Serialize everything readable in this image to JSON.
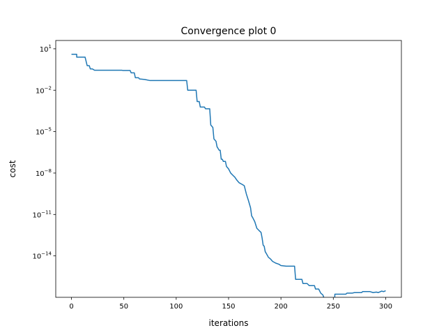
{
  "chart_data": {
    "type": "line",
    "title": "Convergence plot 0",
    "xlabel": "iterations",
    "ylabel": "cost",
    "x_scale": "linear",
    "y_scale": "log",
    "xlim": [
      -15,
      315
    ],
    "ylim": [
      1e-17,
      40
    ],
    "grid": false,
    "line_color": "#1f77b4",
    "x_ticks": [
      0,
      50,
      100,
      150,
      200,
      250,
      300
    ],
    "x_tick_labels": [
      "0",
      "50",
      "100",
      "150",
      "200",
      "250",
      "300"
    ],
    "y_ticks": [
      10,
      0.01,
      1e-05,
      1e-08,
      1e-11,
      1e-14
    ],
    "y_tick_labels": [
      {
        "base": "10",
        "exp": "1"
      },
      {
        "base": "10",
        "exp": "−2"
      },
      {
        "base": "10",
        "exp": "−5"
      },
      {
        "base": "10",
        "exp": "−8"
      },
      {
        "base": "10",
        "exp": "−11"
      },
      {
        "base": "10",
        "exp": "−14"
      }
    ],
    "series": [
      {
        "points": [
          [
            0,
            4
          ],
          [
            5,
            4
          ],
          [
            5,
            2.5
          ],
          [
            13,
            2.5
          ],
          [
            15,
            0.6
          ],
          [
            17,
            0.6
          ],
          [
            18,
            0.35
          ],
          [
            20,
            0.35
          ],
          [
            22,
            0.28
          ],
          [
            48,
            0.28
          ],
          [
            49,
            0.27
          ],
          [
            56,
            0.27
          ],
          [
            57,
            0.18
          ],
          [
            60,
            0.18
          ],
          [
            61,
            0.08
          ],
          [
            64,
            0.08
          ],
          [
            65,
            0.065
          ],
          [
            70,
            0.06
          ],
          [
            75,
            0.05
          ],
          [
            110,
            0.05
          ],
          [
            111,
            0.01
          ],
          [
            119,
            0.01
          ],
          [
            120,
            0.0015
          ],
          [
            122,
            0.0015
          ],
          [
            123,
            0.0006
          ],
          [
            127,
            0.0006
          ],
          [
            128,
            0.00045
          ],
          [
            132,
            0.00045
          ],
          [
            133,
            3e-05
          ],
          [
            135,
            2e-05
          ],
          [
            136,
            3e-06
          ],
          [
            138,
            2e-06
          ],
          [
            139,
            8e-07
          ],
          [
            140,
            6e-07
          ],
          [
            141,
            4.5e-07
          ],
          [
            142,
            4.5e-07
          ],
          [
            143,
            1e-07
          ],
          [
            144,
            1e-07
          ],
          [
            145,
            7e-08
          ],
          [
            147,
            7e-08
          ],
          [
            148,
            3e-08
          ],
          [
            150,
            2e-08
          ],
          [
            152,
            1e-08
          ],
          [
            154,
            7e-09
          ],
          [
            156,
            5e-09
          ],
          [
            158,
            3e-09
          ],
          [
            160,
            2e-09
          ],
          [
            163,
            1.5e-09
          ],
          [
            165,
            1.2e-09
          ],
          [
            167,
            3e-10
          ],
          [
            169,
            1e-10
          ],
          [
            171,
            3e-11
          ],
          [
            172,
            8e-12
          ],
          [
            173,
            6e-12
          ],
          [
            175,
            3e-12
          ],
          [
            177,
            1e-12
          ],
          [
            179,
            7e-13
          ],
          [
            181,
            5e-13
          ],
          [
            182,
            2e-13
          ],
          [
            183,
            6e-14
          ],
          [
            184,
            5e-14
          ],
          [
            185,
            2e-14
          ],
          [
            186,
            1.5e-14
          ],
          [
            188,
            8e-15
          ],
          [
            190,
            6e-15
          ],
          [
            192,
            4e-15
          ],
          [
            195,
            3e-15
          ],
          [
            198,
            2.5e-15
          ],
          [
            200,
            2e-15
          ],
          [
            205,
            1.8e-15
          ],
          [
            213,
            1.8e-15
          ],
          [
            214,
            2e-16
          ],
          [
            220,
            2e-16
          ],
          [
            221,
            1e-16
          ],
          [
            225,
            1e-16
          ],
          [
            227,
            7e-17
          ],
          [
            232,
            7e-17
          ],
          [
            233,
            4e-17
          ],
          [
            236,
            4e-17
          ],
          [
            238,
            2e-17
          ],
          [
            240,
            1.5e-17
          ],
          [
            242,
            6e-18
          ],
          [
            246,
            6e-18
          ],
          [
            248,
            6e-18
          ],
          [
            249,
            3e-18
          ],
          [
            251,
            3e-18
          ],
          [
            251.5,
            1.7e-17
          ],
          [
            262,
            1.7e-17
          ],
          [
            263,
            2e-17
          ],
          [
            268,
            2e-17
          ],
          [
            270,
            2.2e-17
          ],
          [
            277,
            2.2e-17
          ],
          [
            278,
            2.6e-17
          ],
          [
            285,
            2.6e-17
          ],
          [
            288,
            2.2e-17
          ],
          [
            291,
            2.4e-17
          ],
          [
            293,
            2.2e-17
          ],
          [
            296,
            2.8e-17
          ],
          [
            298,
            2.6e-17
          ],
          [
            300,
            3e-17
          ]
        ]
      }
    ]
  }
}
